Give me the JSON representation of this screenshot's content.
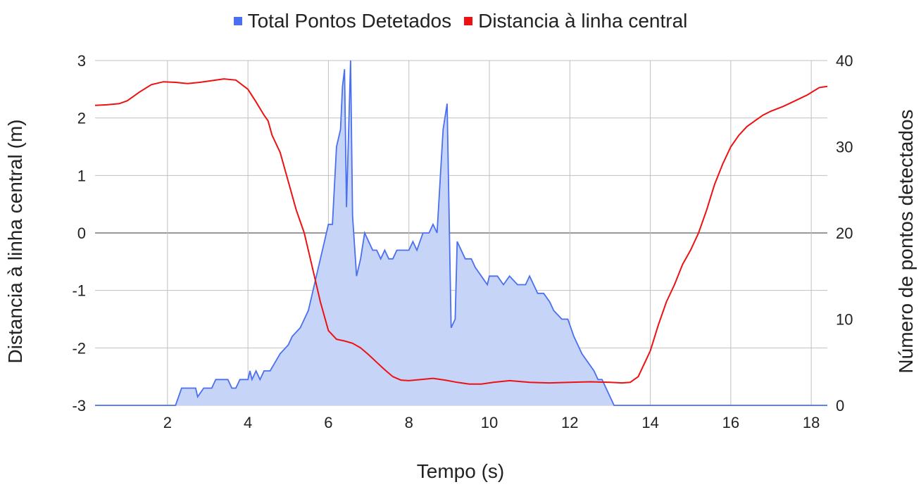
{
  "legend": {
    "blue": "Total Pontos Detetados",
    "red": "Distancia à linha central"
  },
  "colors": {
    "blue": "#4a6ff0",
    "blue_fill": "#c5d4f7",
    "red": "#ee1111",
    "grid": "#c0c0c0",
    "zero": "#333333"
  },
  "chart_data": {
    "type": "line",
    "xlabel": "Tempo (s)",
    "ylabel_left": "Distancia à linha central (m)",
    "ylabel_right": "Número de pontos detectados",
    "xlim": [
      0.2,
      18.4
    ],
    "ylim_left": [
      -3,
      3
    ],
    "ylim_right": [
      0,
      40
    ],
    "x_ticks": [
      2,
      4,
      6,
      8,
      10,
      12,
      14,
      16,
      18
    ],
    "y_ticks_left": [
      3,
      2,
      1,
      0,
      -1,
      -2,
      -3
    ],
    "y_ticks_right": [
      40,
      30,
      20,
      10,
      0
    ],
    "grid": true,
    "legend_position": "top",
    "series": [
      {
        "name": "Total Pontos Detetados",
        "axis": "right",
        "style": "area",
        "points": [
          [
            0.2,
            0
          ],
          [
            2.2,
            0
          ],
          [
            2.35,
            2
          ],
          [
            2.7,
            2
          ],
          [
            2.75,
            1
          ],
          [
            2.9,
            2
          ],
          [
            3.1,
            2
          ],
          [
            3.2,
            3
          ],
          [
            3.5,
            3
          ],
          [
            3.6,
            2
          ],
          [
            3.7,
            2
          ],
          [
            3.8,
            3
          ],
          [
            4.0,
            3
          ],
          [
            4.05,
            4
          ],
          [
            4.1,
            3
          ],
          [
            4.2,
            4
          ],
          [
            4.3,
            3
          ],
          [
            4.4,
            4
          ],
          [
            4.55,
            4
          ],
          [
            4.8,
            6
          ],
          [
            5.0,
            7
          ],
          [
            5.1,
            8
          ],
          [
            5.3,
            9
          ],
          [
            5.5,
            11
          ],
          [
            5.6,
            13
          ],
          [
            5.7,
            15
          ],
          [
            5.8,
            17
          ],
          [
            5.9,
            19
          ],
          [
            6.0,
            21
          ],
          [
            6.1,
            21
          ],
          [
            6.2,
            30
          ],
          [
            6.3,
            32
          ],
          [
            6.35,
            37
          ],
          [
            6.4,
            39
          ],
          [
            6.45,
            23
          ],
          [
            6.55,
            40
          ],
          [
            6.6,
            22
          ],
          [
            6.7,
            15
          ],
          [
            6.8,
            17
          ],
          [
            6.9,
            20
          ],
          [
            7.0,
            19
          ],
          [
            7.1,
            18
          ],
          [
            7.2,
            18
          ],
          [
            7.3,
            17
          ],
          [
            7.4,
            18
          ],
          [
            7.5,
            17
          ],
          [
            7.6,
            17
          ],
          [
            7.7,
            18
          ],
          [
            7.8,
            18
          ],
          [
            8.0,
            18
          ],
          [
            8.1,
            19
          ],
          [
            8.2,
            18
          ],
          [
            8.35,
            20
          ],
          [
            8.5,
            20
          ],
          [
            8.6,
            21
          ],
          [
            8.7,
            20
          ],
          [
            8.85,
            32
          ],
          [
            8.95,
            35
          ],
          [
            9.05,
            9
          ],
          [
            9.15,
            10
          ],
          [
            9.2,
            19
          ],
          [
            9.3,
            18
          ],
          [
            9.4,
            17
          ],
          [
            9.55,
            17
          ],
          [
            9.65,
            16
          ],
          [
            9.8,
            15
          ],
          [
            9.95,
            14
          ],
          [
            10.0,
            15
          ],
          [
            10.2,
            15
          ],
          [
            10.35,
            14
          ],
          [
            10.5,
            15
          ],
          [
            10.7,
            14
          ],
          [
            10.9,
            14
          ],
          [
            11.0,
            15
          ],
          [
            11.2,
            13
          ],
          [
            11.35,
            13
          ],
          [
            11.5,
            12
          ],
          [
            11.6,
            11
          ],
          [
            11.8,
            10
          ],
          [
            11.95,
            10
          ],
          [
            12.1,
            8
          ],
          [
            12.3,
            6
          ],
          [
            12.45,
            5
          ],
          [
            12.6,
            4
          ],
          [
            12.7,
            3
          ],
          [
            12.8,
            3
          ],
          [
            12.9,
            2
          ],
          [
            13.0,
            1
          ],
          [
            13.1,
            0
          ],
          [
            18.4,
            0
          ]
        ]
      },
      {
        "name": "Distancia à linha central",
        "axis": "left",
        "style": "line",
        "points": [
          [
            0.2,
            2.22
          ],
          [
            0.5,
            2.23
          ],
          [
            0.8,
            2.25
          ],
          [
            1.0,
            2.3
          ],
          [
            1.3,
            2.45
          ],
          [
            1.6,
            2.58
          ],
          [
            1.9,
            2.63
          ],
          [
            2.2,
            2.62
          ],
          [
            2.5,
            2.6
          ],
          [
            2.8,
            2.62
          ],
          [
            3.1,
            2.65
          ],
          [
            3.4,
            2.68
          ],
          [
            3.7,
            2.66
          ],
          [
            4.0,
            2.5
          ],
          [
            4.2,
            2.28
          ],
          [
            4.4,
            2.05
          ],
          [
            4.5,
            1.95
          ],
          [
            4.6,
            1.7
          ],
          [
            4.8,
            1.4
          ],
          [
            5.0,
            0.9
          ],
          [
            5.2,
            0.4
          ],
          [
            5.4,
            0.0
          ],
          [
            5.6,
            -0.6
          ],
          [
            5.8,
            -1.2
          ],
          [
            6.0,
            -1.7
          ],
          [
            6.2,
            -1.85
          ],
          [
            6.4,
            -1.88
          ],
          [
            6.6,
            -1.92
          ],
          [
            6.8,
            -2.0
          ],
          [
            7.0,
            -2.12
          ],
          [
            7.2,
            -2.25
          ],
          [
            7.4,
            -2.38
          ],
          [
            7.6,
            -2.5
          ],
          [
            7.8,
            -2.56
          ],
          [
            8.0,
            -2.57
          ],
          [
            8.3,
            -2.55
          ],
          [
            8.6,
            -2.53
          ],
          [
            8.9,
            -2.56
          ],
          [
            9.2,
            -2.6
          ],
          [
            9.5,
            -2.63
          ],
          [
            9.8,
            -2.63
          ],
          [
            10.1,
            -2.6
          ],
          [
            10.5,
            -2.57
          ],
          [
            11.0,
            -2.6
          ],
          [
            11.5,
            -2.61
          ],
          [
            12.0,
            -2.6
          ],
          [
            12.5,
            -2.59
          ],
          [
            13.0,
            -2.6
          ],
          [
            13.3,
            -2.61
          ],
          [
            13.5,
            -2.6
          ],
          [
            13.7,
            -2.5
          ],
          [
            13.9,
            -2.2
          ],
          [
            14.0,
            -2.05
          ],
          [
            14.2,
            -1.6
          ],
          [
            14.4,
            -1.2
          ],
          [
            14.6,
            -0.9
          ],
          [
            14.8,
            -0.55
          ],
          [
            15.0,
            -0.3
          ],
          [
            15.2,
            0.0
          ],
          [
            15.4,
            0.4
          ],
          [
            15.6,
            0.85
          ],
          [
            15.8,
            1.2
          ],
          [
            16.0,
            1.5
          ],
          [
            16.2,
            1.7
          ],
          [
            16.4,
            1.85
          ],
          [
            16.6,
            1.95
          ],
          [
            16.8,
            2.05
          ],
          [
            17.0,
            2.12
          ],
          [
            17.3,
            2.2
          ],
          [
            17.6,
            2.3
          ],
          [
            17.9,
            2.4
          ],
          [
            18.2,
            2.53
          ],
          [
            18.4,
            2.55
          ]
        ]
      }
    ]
  }
}
